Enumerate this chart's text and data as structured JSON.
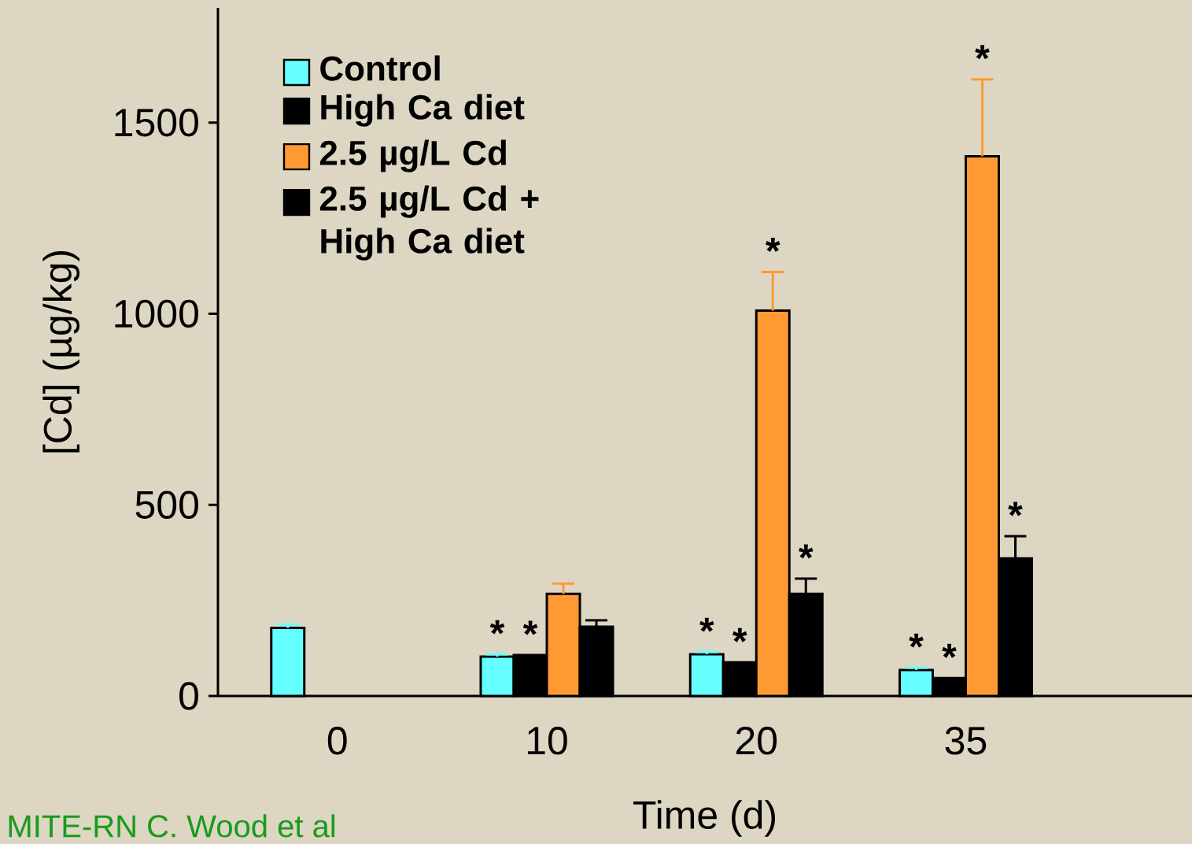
{
  "chart_data": {
    "type": "bar",
    "xlabel": "Time (d)",
    "ylabel": "[Cd] (µg/kg)",
    "categories": [
      "0",
      "10",
      "20",
      "35"
    ],
    "series": [
      {
        "name": "Control",
        "color": "#66ffff",
        "values": [
          178,
          103,
          109,
          68
        ],
        "errors": [
          9,
          6,
          6,
          6
        ],
        "value_labels": [
          null,
          "*",
          "*",
          "*"
        ]
      },
      {
        "name": "High Ca diet",
        "color": "#000000",
        "values": [
          null,
          107,
          88,
          47
        ],
        "errors": [
          null,
          null,
          null,
          null
        ],
        "value_labels": [
          null,
          "*",
          "*",
          "*"
        ]
      },
      {
        "name": "2.5 µg/L Cd",
        "color": "#ff9933",
        "values": [
          null,
          267,
          1008,
          1412
        ],
        "errors": [
          null,
          27,
          101,
          201
        ],
        "value_labels": [
          null,
          null,
          "*",
          "*"
        ]
      },
      {
        "name": "2.5 µg/L Cd  + High Ca diet",
        "color": "#000000",
        "values": [
          null,
          181,
          267,
          360
        ],
        "errors": [
          null,
          17,
          40,
          58
        ],
        "value_labels": [
          null,
          null,
          "*",
          "*"
        ]
      }
    ],
    "ylim": [
      0,
      1800
    ],
    "yticks": [
      0,
      500,
      1000,
      1500
    ],
    "legend": "top left",
    "annotations": [
      "MITE-RN C. Wood et al"
    ]
  }
}
